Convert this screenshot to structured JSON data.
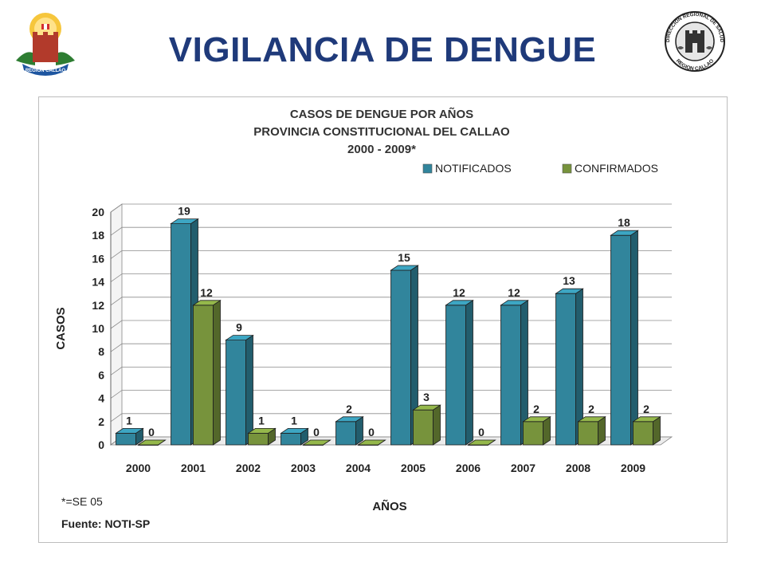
{
  "page": {
    "title": "VIGILANCIA DE DENGUE",
    "logo_left_text": "REGION CALLAO",
    "logo_right_text_top": "DIRECCION REGIONAL DE SALUD",
    "logo_right_text_bottom": "REGION CALLAO"
  },
  "chart_data": {
    "type": "bar",
    "title_lines": [
      "CASOS DE DENGUE POR AÑOS",
      "PROVINCIA CONSTITUCIONAL DEL CALLAO",
      "2000 - 2009*"
    ],
    "categories": [
      "2000",
      "2001",
      "2002",
      "2003",
      "2004",
      "2005",
      "2006",
      "2007",
      "2008",
      "2009"
    ],
    "series": [
      {
        "name": "NOTIFICADOS",
        "color": "#31859c",
        "values": [
          1,
          19,
          9,
          1,
          2,
          15,
          12,
          12,
          13,
          18
        ]
      },
      {
        "name": "CONFIRMADOS",
        "color": "#77933c",
        "values": [
          0,
          12,
          1,
          0,
          0,
          3,
          0,
          2,
          2,
          2
        ]
      }
    ],
    "xlabel": "AÑOS",
    "ylabel": "CASOS",
    "ylim": [
      0,
      20
    ],
    "yticks": [
      0,
      2,
      4,
      6,
      8,
      10,
      12,
      14,
      16,
      18,
      20
    ],
    "grid": true,
    "legend_position": "top-right",
    "three_d": true
  },
  "notes": {
    "footnote": "*=SE 05",
    "source": "Fuente: NOTI-SP"
  }
}
